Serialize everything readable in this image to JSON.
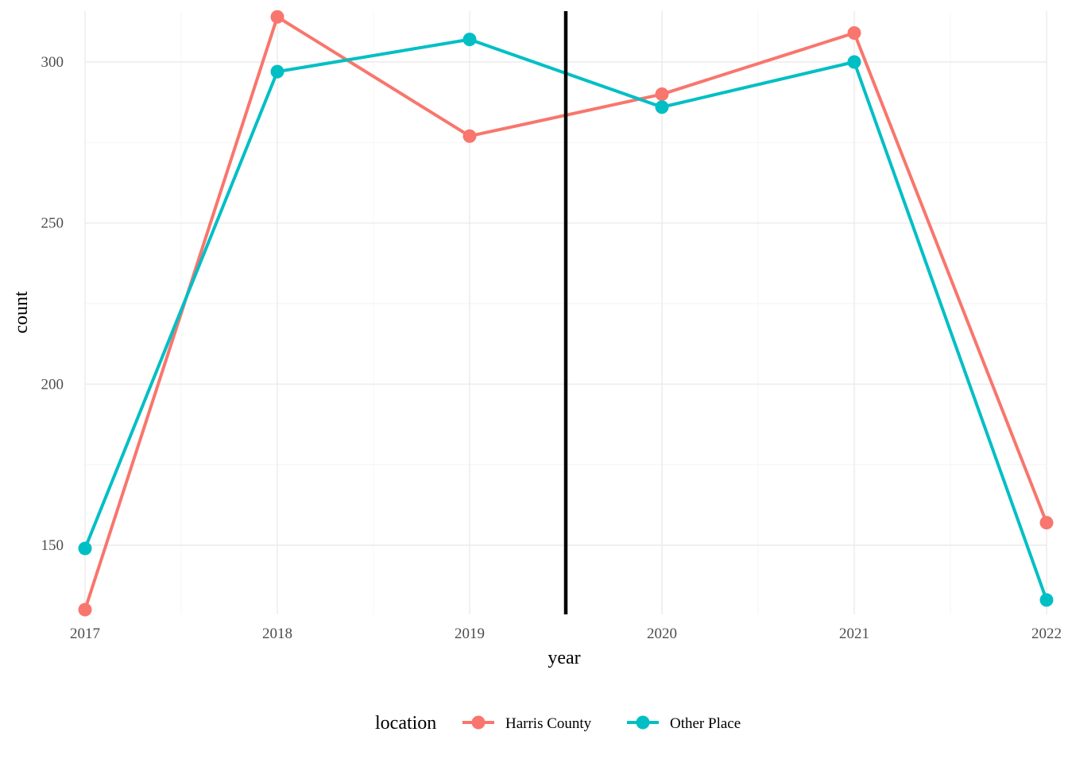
{
  "chart_data": {
    "type": "line",
    "xlabel": "year",
    "ylabel": "count",
    "x": [
      2017,
      2018,
      2019,
      2020,
      2021,
      2022
    ],
    "xlim": [
      2017,
      2022
    ],
    "ylim": [
      130,
      314
    ],
    "y_ticks": [
      150,
      200,
      250,
      300
    ],
    "grid": true,
    "legend": {
      "title": "location",
      "placement": "bottom"
    },
    "series": [
      {
        "name": "Harris County",
        "color": "#F8766D",
        "values": [
          130,
          314,
          277,
          290,
          309,
          157
        ]
      },
      {
        "name": "Other Place",
        "color": "#00BFC4",
        "values": [
          149,
          297,
          307,
          286,
          300,
          133
        ]
      }
    ],
    "vline": {
      "x": 2019.5,
      "color": "#000000"
    }
  }
}
